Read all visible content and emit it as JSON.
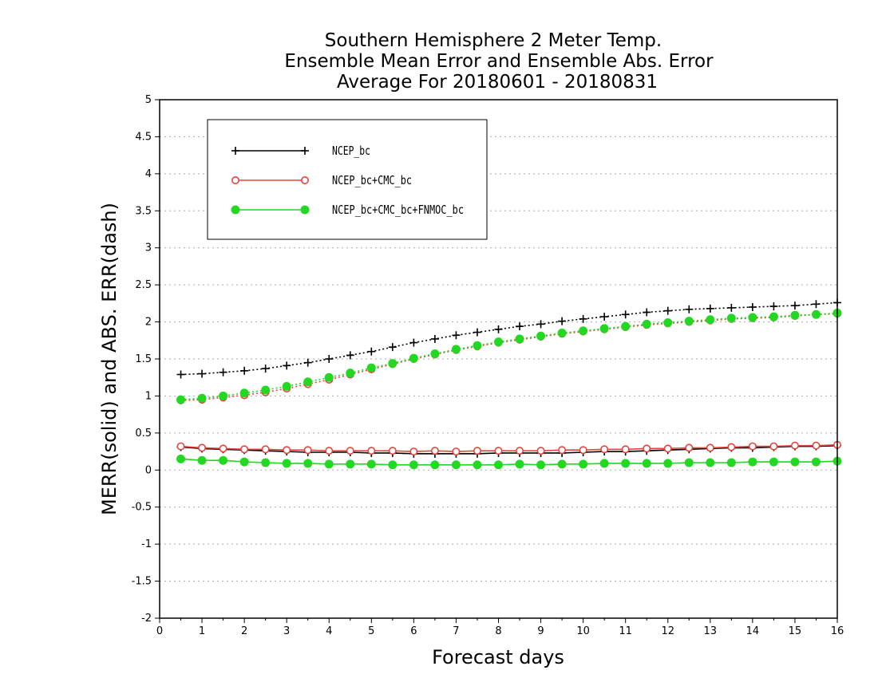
{
  "chart_data": {
    "type": "line",
    "title_lines": [
      "Southern Hemisphere 2 Meter Temp.",
      "Ensemble Mean Error and Ensemble Abs. Error",
      "Average For 20180601 - 20180831"
    ],
    "xlabel": "Forecast days",
    "ylabel": "MERR(solid) and ABS. ERR(dash)",
    "xlim": [
      0,
      16
    ],
    "ylim": [
      -2,
      5
    ],
    "x_ticks": [
      0,
      1,
      2,
      3,
      4,
      5,
      6,
      7,
      8,
      9,
      10,
      11,
      12,
      13,
      14,
      15,
      16
    ],
    "y_ticks": [
      -2,
      -1.5,
      -1,
      -0.5,
      0,
      0.5,
      1,
      1.5,
      2,
      2.5,
      3,
      3.5,
      4,
      4.5,
      5
    ],
    "y_tick_labels": [
      "-2",
      "-1.5",
      "-1",
      "-0.5",
      "0",
      "0.5",
      "1",
      "1.5",
      "2",
      "2.5",
      "3",
      "3.5",
      "4",
      "4.5",
      "5"
    ],
    "grid": "horizontal dotted",
    "legend_position": "top-left",
    "x": [
      0.5,
      1,
      1.5,
      2,
      2.5,
      3,
      3.5,
      4,
      4.5,
      5,
      5.5,
      6,
      6.5,
      7,
      7.5,
      8,
      8.5,
      9,
      9.5,
      10,
      10.5,
      11,
      11.5,
      12,
      12.5,
      13,
      13.5,
      14,
      14.5,
      15,
      15.5,
      16
    ],
    "series": [
      {
        "name": "NCEP_bc",
        "color": "#000000",
        "marker": "plus",
        "merr": [
          0.31,
          0.29,
          0.28,
          0.27,
          0.26,
          0.25,
          0.24,
          0.24,
          0.24,
          0.23,
          0.23,
          0.22,
          0.22,
          0.22,
          0.22,
          0.23,
          0.23,
          0.23,
          0.23,
          0.24,
          0.25,
          0.25,
          0.26,
          0.27,
          0.28,
          0.29,
          0.3,
          0.3,
          0.31,
          0.32,
          0.32,
          0.33
        ],
        "abs_err": [
          1.29,
          1.3,
          1.32,
          1.34,
          1.37,
          1.41,
          1.45,
          1.5,
          1.55,
          1.6,
          1.66,
          1.72,
          1.77,
          1.82,
          1.86,
          1.9,
          1.94,
          1.97,
          2.01,
          2.04,
          2.07,
          2.1,
          2.13,
          2.15,
          2.17,
          2.18,
          2.19,
          2.2,
          2.21,
          2.22,
          2.24,
          2.26
        ]
      },
      {
        "name": "NCEP_bc+CMC_bc",
        "color": "#e8423c",
        "marker": "open-circle",
        "merr": [
          0.32,
          0.3,
          0.29,
          0.28,
          0.28,
          0.27,
          0.27,
          0.26,
          0.26,
          0.26,
          0.26,
          0.25,
          0.26,
          0.25,
          0.26,
          0.26,
          0.26,
          0.26,
          0.27,
          0.27,
          0.28,
          0.28,
          0.29,
          0.29,
          0.3,
          0.3,
          0.31,
          0.32,
          0.32,
          0.33,
          0.33,
          0.34
        ],
        "abs_err": [
          0.94,
          0.95,
          0.98,
          1.01,
          1.05,
          1.1,
          1.16,
          1.22,
          1.29,
          1.36,
          1.43,
          1.5,
          1.56,
          1.62,
          1.67,
          1.72,
          1.76,
          1.8,
          1.84,
          1.87,
          1.9,
          1.93,
          1.96,
          1.98,
          2.0,
          2.02,
          2.04,
          2.05,
          2.06,
          2.08,
          2.1,
          2.11
        ]
      },
      {
        "name": "NCEP_bc+CMC_bc+FNMOC_bc",
        "color": "#22d822",
        "marker": "filled-circle",
        "merr": [
          0.15,
          0.13,
          0.13,
          0.11,
          0.1,
          0.09,
          0.09,
          0.08,
          0.08,
          0.08,
          0.07,
          0.07,
          0.07,
          0.07,
          0.07,
          0.07,
          0.08,
          0.07,
          0.08,
          0.08,
          0.09,
          0.09,
          0.09,
          0.09,
          0.1,
          0.1,
          0.1,
          0.11,
          0.11,
          0.11,
          0.11,
          0.12
        ],
        "abs_err": [
          0.95,
          0.97,
          1.0,
          1.04,
          1.08,
          1.13,
          1.19,
          1.25,
          1.31,
          1.38,
          1.44,
          1.51,
          1.57,
          1.63,
          1.68,
          1.73,
          1.77,
          1.81,
          1.85,
          1.88,
          1.91,
          1.94,
          1.97,
          1.99,
          2.01,
          2.03,
          2.05,
          2.06,
          2.07,
          2.09,
          2.1,
          2.12
        ]
      }
    ]
  }
}
